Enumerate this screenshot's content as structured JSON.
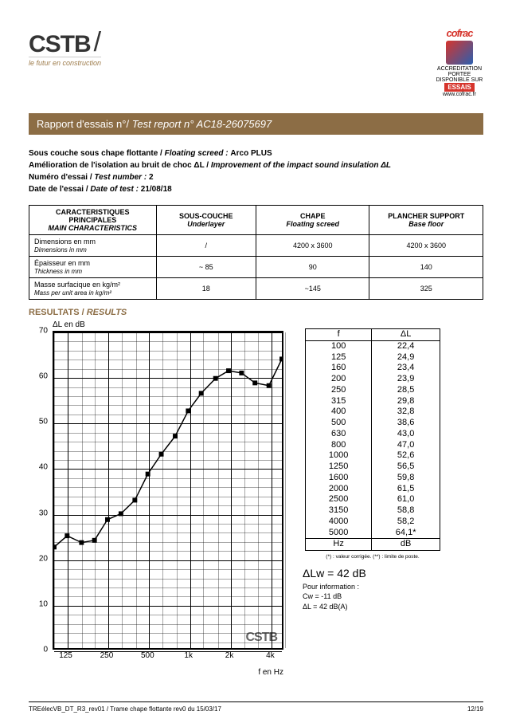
{
  "logo": {
    "name": "CSTB",
    "tagline": "le futur en construction"
  },
  "cofrac": {
    "top": "cofrac",
    "essais": "ESSAIS",
    "accred": "ACCREDITATION",
    "small": "PORTEE DISPONIBLE SUR",
    "url": "www.cofrac.fr"
  },
  "titlebar": {
    "fr": "Rapport d'essais n°/ ",
    "en": "Test report n° ",
    "num": "AC18-26075697"
  },
  "meta": {
    "l1a": "Sous couche sous chape flottante / ",
    "l1b": "Floating screed : ",
    "l1c": "Arco PLUS",
    "l2a": "Amélioration de l'isolation au bruit de choc ΔL / ",
    "l2b": "Improvement of the impact sound insulation ΔL",
    "l3a": "Numéro d'essai / ",
    "l3b": "Test number : ",
    "l3c": "2",
    "l4a": "Date de l'essai / ",
    "l4b": "Date of test : ",
    "l4c": "21/08/18"
  },
  "table": {
    "h1a": "CARACTERISTIQUES PRINCIPALES",
    "h1b": "MAIN CHARACTERISTICS",
    "h2a": "SOUS-COUCHE",
    "h2b": "Underlayer",
    "h3a": "CHAPE",
    "h3b": "Floating screed",
    "h4a": "PLANCHER SUPPORT",
    "h4b": "Base floor",
    "r1a": "Dimensions en mm",
    "r1b": "Dimensions in mm",
    "r1c": "/",
    "r1d": "4200 x 3600",
    "r1e": "4200 x 3600",
    "r2a": "Épaisseur en mm",
    "r2b": "Thickness in mm",
    "r2c": "~ 85",
    "r2d": "90",
    "r2e": "140",
    "r3a": "Masse surfacique en kg/m²",
    "r3b": "Mass per unit area in kg/m²",
    "r3c": "18",
    "r3d": "~145",
    "r3e": "325"
  },
  "results": {
    "hdr_fr": "RESULTATS / ",
    "hdr_en": "RESULTS",
    "ylabel": "ΔL en dB",
    "xlabel": "f en Hz"
  },
  "chart": {
    "ylim": [
      0,
      70
    ],
    "yticks": [
      0,
      10,
      20,
      30,
      40,
      50,
      60,
      70
    ],
    "minor_y": 2,
    "xticks": [
      125,
      250,
      500,
      1000,
      2000,
      4000
    ],
    "xticklabels": [
      "125",
      "250",
      "500",
      "1k",
      "2k",
      "4k"
    ],
    "freqs": [
      100,
      125,
      160,
      200,
      250,
      315,
      400,
      500,
      630,
      800,
      1000,
      1250,
      1600,
      2000,
      2500,
      3150,
      4000,
      5000
    ],
    "dl": [
      22.4,
      24.9,
      23.4,
      23.9,
      28.5,
      29.8,
      32.8,
      38.6,
      43.0,
      47.0,
      52.6,
      56.5,
      59.8,
      61.5,
      61.0,
      58.8,
      58.2,
      64.1
    ],
    "watermark": "CSTB"
  },
  "freqtable": {
    "h1": "f",
    "h2": "ΔL",
    "f_unit": "Hz",
    "d_unit": "dB",
    "rows": [
      [
        "100",
        "22,4"
      ],
      [
        "125",
        "24,9"
      ],
      [
        "160",
        "23,4"
      ],
      [
        "200",
        "23,9"
      ],
      [
        "250",
        "28,5"
      ],
      [
        "315",
        "29,8"
      ],
      [
        "400",
        "32,8"
      ],
      [
        "500",
        "38,6"
      ],
      [
        "630",
        "43,0"
      ],
      [
        "800",
        "47,0"
      ],
      [
        "1000",
        "52,6"
      ],
      [
        "1250",
        "56,5"
      ],
      [
        "1600",
        "59,8"
      ],
      [
        "2000",
        "61,5"
      ],
      [
        "2500",
        "61,0"
      ],
      [
        "3150",
        "58,8"
      ],
      [
        "4000",
        "58,2"
      ],
      [
        "5000",
        "64,1*"
      ]
    ],
    "note": "(*) : valeur corrigée.      (**) : limite de poste."
  },
  "summary": {
    "main": "ΔLw = 42 dB",
    "info": "Pour information :",
    "c1": "Cw = -11 dB",
    "c2": "ΔL = 42 dB(A)"
  },
  "footer": {
    "left": "TREélecVB_DT_R3_rev01 / Trame chape flottante rev0 du 15/03/17",
    "right": "12/19"
  }
}
